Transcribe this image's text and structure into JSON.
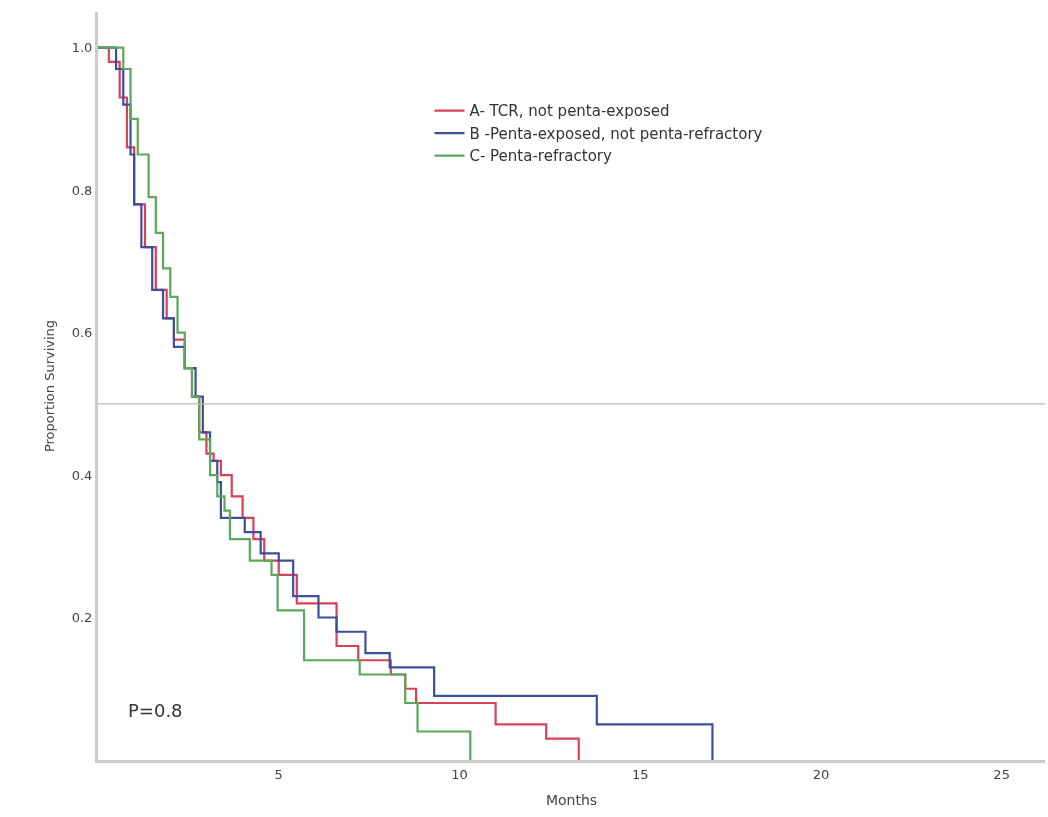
{
  "chart_data": {
    "type": "step",
    "xlabel": "Months",
    "ylabel": "Proportion Surviving",
    "xlim": [
      0,
      26.2
    ],
    "ylim": [
      0,
      1.05
    ],
    "xticks": [
      5,
      10,
      15,
      20,
      25
    ],
    "yticks": [
      0.2,
      0.4,
      0.6,
      0.8,
      {
        "value": 1.0,
        "label": "1.0"
      }
    ],
    "legend": "top right",
    "marker": "none",
    "line_style": "solid",
    "annotations": [
      "P=0.8"
    ],
    "ref_lines": [
      {
        "axis": "y",
        "value": 0.5,
        "color": "#b8b8b8"
      }
    ],
    "series": [
      {
        "name": "A- TCR, not penta-exposed",
        "color": "#d9405a",
        "x": [
          0,
          0.3,
          0.6,
          0.8,
          1.0,
          1.3,
          1.6,
          1.9,
          2.1,
          2.4,
          2.6,
          2.8,
          3.0,
          3.2,
          3.4,
          3.7,
          4.0,
          4.3,
          4.6,
          5.0,
          5.5,
          6.6,
          7.2,
          8.1,
          8.5,
          8.8,
          11.0,
          12.4,
          13.3
        ],
        "values": [
          1.0,
          0.98,
          0.93,
          0.86,
          0.78,
          0.72,
          0.66,
          0.62,
          0.59,
          0.55,
          0.51,
          0.46,
          0.43,
          0.42,
          0.4,
          0.37,
          0.34,
          0.31,
          0.28,
          0.26,
          0.22,
          0.16,
          0.14,
          0.12,
          0.1,
          0.08,
          0.05,
          0.03,
          0
        ]
      },
      {
        "name": "B -Penta-exposed, not penta-refractory",
        "color": "#3b4f9a",
        "x": [
          0,
          0.5,
          0.7,
          0.9,
          1.0,
          1.2,
          1.5,
          1.8,
          2.1,
          2.4,
          2.7,
          2.9,
          3.1,
          3.3,
          3.4,
          4.06,
          4.5,
          5.0,
          5.4,
          6.1,
          6.6,
          7.4,
          8.07,
          9.3,
          13.8,
          17.0
        ],
        "values": [
          1.0,
          0.97,
          0.92,
          0.85,
          0.78,
          0.72,
          0.66,
          0.62,
          0.58,
          0.55,
          0.51,
          0.46,
          0.42,
          0.39,
          0.34,
          0.32,
          0.29,
          0.28,
          0.23,
          0.2,
          0.18,
          0.15,
          0.13,
          0.09,
          0.05,
          0
        ]
      },
      {
        "name": "C- Penta-refractory",
        "color": "#5aa85a",
        "x": [
          0,
          0.7,
          0.9,
          1.1,
          1.4,
          1.6,
          1.8,
          2.0,
          2.2,
          2.4,
          2.6,
          2.8,
          3.1,
          3.3,
          3.5,
          3.65,
          4.2,
          4.8,
          4.97,
          5.7,
          7.24,
          8.5,
          8.84,
          10.3
        ],
        "values": [
          1.0,
          0.97,
          0.9,
          0.85,
          0.79,
          0.74,
          0.69,
          0.65,
          0.6,
          0.55,
          0.51,
          0.45,
          0.4,
          0.37,
          0.35,
          0.31,
          0.28,
          0.26,
          0.21,
          0.14,
          0.12,
          0.08,
          0.04,
          0
        ]
      }
    ]
  }
}
